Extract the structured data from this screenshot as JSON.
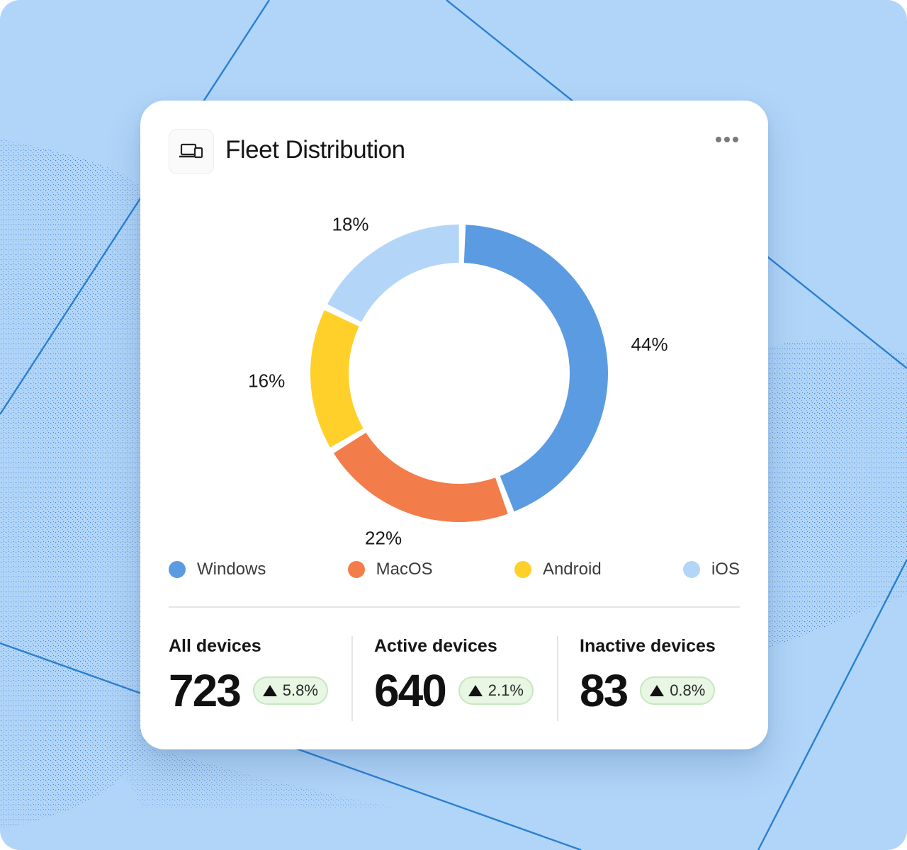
{
  "card": {
    "title": "Fleet Distribution",
    "header_icon": "devices-icon",
    "menu_icon": "more-horizontal-icon"
  },
  "chart_data": {
    "type": "pie",
    "variant": "donut",
    "categories": [
      "Windows",
      "MacOS",
      "Android",
      "iOS"
    ],
    "values": [
      44,
      22,
      16,
      18
    ],
    "labels": [
      "44%",
      "22%",
      "16%",
      "18%"
    ],
    "colors": [
      "#5b9be1",
      "#f27c4a",
      "#ffd02a",
      "#b3d6f8"
    ],
    "legend": "bottom"
  },
  "legend": [
    {
      "label": "Windows",
      "color": "#5b9be1"
    },
    {
      "label": "MacOS",
      "color": "#f27c4a"
    },
    {
      "label": "Android",
      "color": "#ffd02a"
    },
    {
      "label": "iOS",
      "color": "#b3d6f8"
    }
  ],
  "stats": [
    {
      "label": "All devices",
      "value": "723",
      "change": "5.8%",
      "trend_icon": "triangle-up-icon"
    },
    {
      "label": "Active devices",
      "value": "640",
      "change": "2.1%",
      "trend_icon": "triangle-up-icon"
    },
    {
      "label": "Inactive devices",
      "value": "83",
      "change": "0.8%",
      "trend_icon": "triangle-up-icon"
    }
  ]
}
